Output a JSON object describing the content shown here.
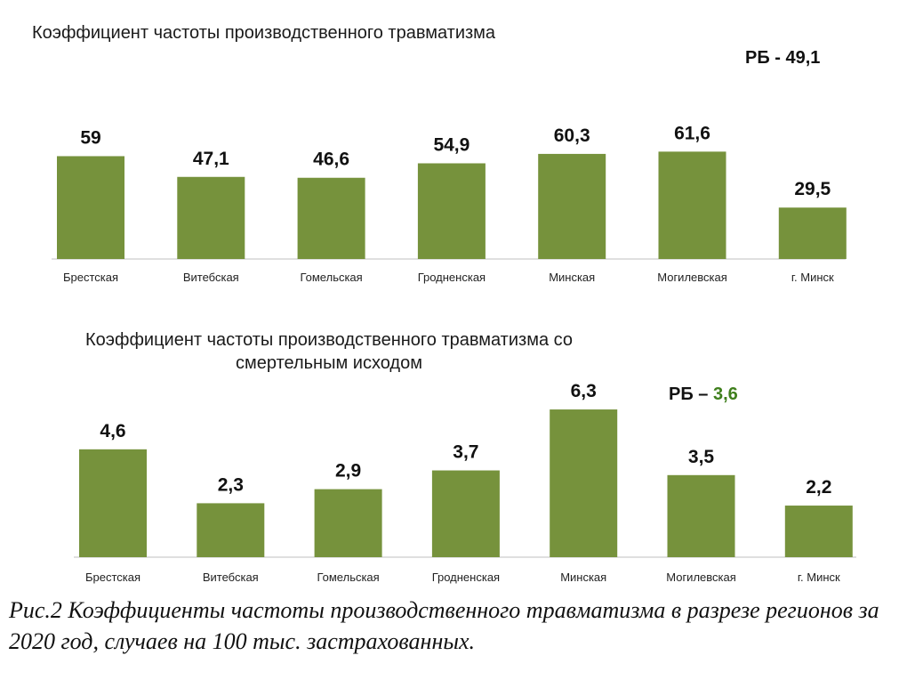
{
  "chart_data": [
    {
      "type": "bar",
      "title": "Коэффициент частоты производственного травматизма",
      "note": {
        "prefix": "РБ - ",
        "value": "49,1"
      },
      "categories": [
        "Брестская",
        "Витебская",
        "Гомельская",
        "Гродненская",
        "Минская",
        "Могилевская",
        "г. Минск"
      ],
      "values": [
        59,
        47.1,
        46.6,
        54.9,
        60.3,
        61.6,
        29.5
      ],
      "value_labels": [
        "59",
        "47,1",
        "46,6",
        "54,9",
        "60,3",
        "61,6",
        "29,5"
      ],
      "ylim": [
        0,
        96
      ],
      "grid": false,
      "bar_color": "#76923c"
    },
    {
      "type": "bar",
      "title": "Коэффициент частоты производственного травматизма со смертельным исходом",
      "note": {
        "prefix": "РБ – ",
        "value": "3,6"
      },
      "categories": [
        "Брестская",
        "Витебская",
        "Гомельская",
        "Гродненская",
        "Минская",
        "Могилевская",
        "г. Минск"
      ],
      "values": [
        4.6,
        2.3,
        2.9,
        3.7,
        6.3,
        3.5,
        2.2
      ],
      "value_labels": [
        "4,6",
        "2,3",
        "2,9",
        "3,7",
        "6,3",
        "3,5",
        "2,2"
      ],
      "ylim": [
        0,
        8.2
      ],
      "grid": false,
      "bar_color": "#76923c",
      "note_value_color": "#3f7f1c"
    }
  ],
  "caption": "Рис.2  Коэффициенты частоты производственного травматизма в разрезе регионов за 2020 год, случаев на 100 тыс. застрахованных."
}
